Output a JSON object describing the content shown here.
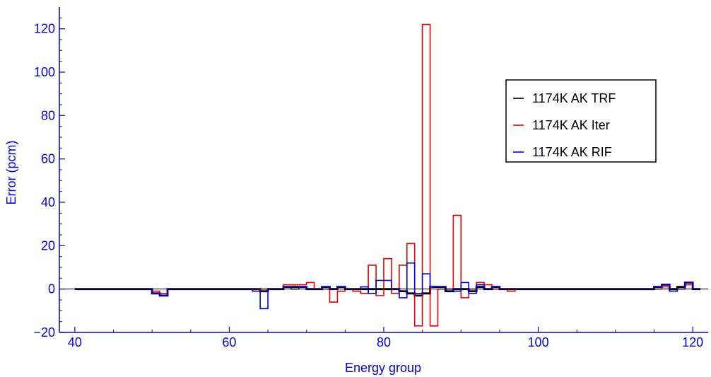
{
  "chart_data": {
    "type": "line",
    "style": "step histogram",
    "xlabel": "Energy group",
    "ylabel": "Error (pcm)",
    "xlim": [
      38,
      122
    ],
    "ylim": [
      -20,
      130
    ],
    "x_ticks": [
      40,
      60,
      80,
      100,
      120
    ],
    "x_tick_labels": [
      "40",
      "60",
      "80",
      "100",
      "120"
    ],
    "y_ticks": [
      -20,
      0,
      20,
      40,
      60,
      80,
      100,
      120
    ],
    "y_tick_labels": [
      "−20",
      "0",
      "20",
      "40",
      "60",
      "80",
      "100",
      "120"
    ],
    "grid": false,
    "legend_position": "upper-right",
    "axis_color": "#0000ee",
    "series": [
      {
        "name": "1174K AK TRF",
        "color": "#000000",
        "x": [
          40,
          41,
          42,
          43,
          44,
          45,
          46,
          47,
          48,
          49,
          50,
          51,
          52,
          53,
          54,
          55,
          56,
          57,
          58,
          59,
          60,
          61,
          62,
          63,
          64,
          65,
          66,
          67,
          68,
          69,
          70,
          71,
          72,
          73,
          74,
          75,
          76,
          77,
          78,
          79,
          80,
          81,
          82,
          83,
          84,
          85,
          86,
          87,
          88,
          89,
          90,
          91,
          92,
          93,
          94,
          95,
          96,
          97,
          98,
          99,
          100,
          101,
          102,
          103,
          104,
          105,
          106,
          107,
          108,
          109,
          110,
          111,
          112,
          113,
          114,
          115,
          116,
          117,
          118,
          119,
          120
        ],
        "values": [
          0,
          0,
          0,
          0,
          0,
          0,
          0,
          0,
          0,
          0,
          -2,
          -3,
          0,
          0,
          0,
          0,
          0,
          0,
          0,
          0,
          0,
          0,
          0,
          0,
          -1,
          0,
          0,
          1,
          1,
          1,
          0,
          0,
          1,
          0,
          1,
          0,
          0,
          0,
          0,
          0,
          0,
          0,
          -1,
          -2,
          -3,
          -2,
          1,
          1,
          -1,
          0,
          0,
          -1,
          1,
          0,
          1,
          0,
          0,
          0,
          0,
          0,
          0,
          0,
          0,
          0,
          0,
          0,
          0,
          0,
          0,
          0,
          0,
          0,
          0,
          0,
          0,
          1,
          2,
          0,
          1,
          3,
          0
        ]
      },
      {
        "name": "1174K AK Iter",
        "color": "#ee0000",
        "x": [
          40,
          41,
          42,
          43,
          44,
          45,
          46,
          47,
          48,
          49,
          50,
          51,
          52,
          53,
          54,
          55,
          56,
          57,
          58,
          59,
          60,
          61,
          62,
          63,
          64,
          65,
          66,
          67,
          68,
          69,
          70,
          71,
          72,
          73,
          74,
          75,
          76,
          77,
          78,
          79,
          80,
          81,
          82,
          83,
          84,
          85,
          86,
          87,
          88,
          89,
          90,
          91,
          92,
          93,
          94,
          95,
          96,
          97,
          98,
          99,
          100,
          101,
          102,
          103,
          104,
          105,
          106,
          107,
          108,
          109,
          110,
          111,
          112,
          113,
          114,
          115,
          116,
          117,
          118,
          119,
          120
        ],
        "values": [
          0,
          0,
          0,
          0,
          0,
          0,
          0,
          0,
          0,
          0,
          -1,
          -2,
          0,
          0,
          0,
          0,
          0,
          0,
          0,
          0,
          0,
          0,
          0,
          0,
          0,
          0,
          0,
          2,
          2,
          2,
          3,
          0,
          0,
          -6,
          -1,
          0,
          -1,
          -2,
          11,
          -3,
          14,
          -2,
          11,
          21,
          -17,
          122,
          -17,
          0,
          0,
          34,
          -4,
          0,
          3,
          2,
          0,
          0,
          -1,
          0,
          0,
          0,
          0,
          0,
          0,
          0,
          0,
          0,
          0,
          0,
          0,
          0,
          0,
          0,
          0,
          0,
          0,
          0,
          1,
          -1,
          0,
          2,
          0
        ]
      },
      {
        "name": "1174K AK RIF",
        "color": "#0000ee",
        "x": [
          40,
          41,
          42,
          43,
          44,
          45,
          46,
          47,
          48,
          49,
          50,
          51,
          52,
          53,
          54,
          55,
          56,
          57,
          58,
          59,
          60,
          61,
          62,
          63,
          64,
          65,
          66,
          67,
          68,
          69,
          70,
          71,
          72,
          73,
          74,
          75,
          76,
          77,
          78,
          79,
          80,
          81,
          82,
          83,
          84,
          85,
          86,
          87,
          88,
          89,
          90,
          91,
          92,
          93,
          94,
          95,
          96,
          97,
          98,
          99,
          100,
          101,
          102,
          103,
          104,
          105,
          106,
          107,
          108,
          109,
          110,
          111,
          112,
          113,
          114,
          115,
          116,
          117,
          118,
          119,
          120
        ],
        "values": [
          0,
          0,
          0,
          0,
          0,
          0,
          0,
          0,
          0,
          0,
          -2,
          -3,
          0,
          0,
          0,
          0,
          0,
          0,
          0,
          0,
          0,
          0,
          0,
          -1,
          -9,
          0,
          0,
          1,
          0,
          1,
          0,
          0,
          1,
          0,
          1,
          0,
          0,
          1,
          -2,
          4,
          4,
          0,
          -4,
          12,
          -2,
          7,
          1,
          1,
          0,
          -1,
          3,
          -2,
          2,
          0,
          1,
          0,
          0,
          0,
          0,
          0,
          0,
          0,
          0,
          0,
          0,
          0,
          0,
          0,
          0,
          0,
          0,
          0,
          0,
          0,
          0,
          1,
          2,
          -1,
          0,
          3,
          0
        ]
      }
    ]
  }
}
